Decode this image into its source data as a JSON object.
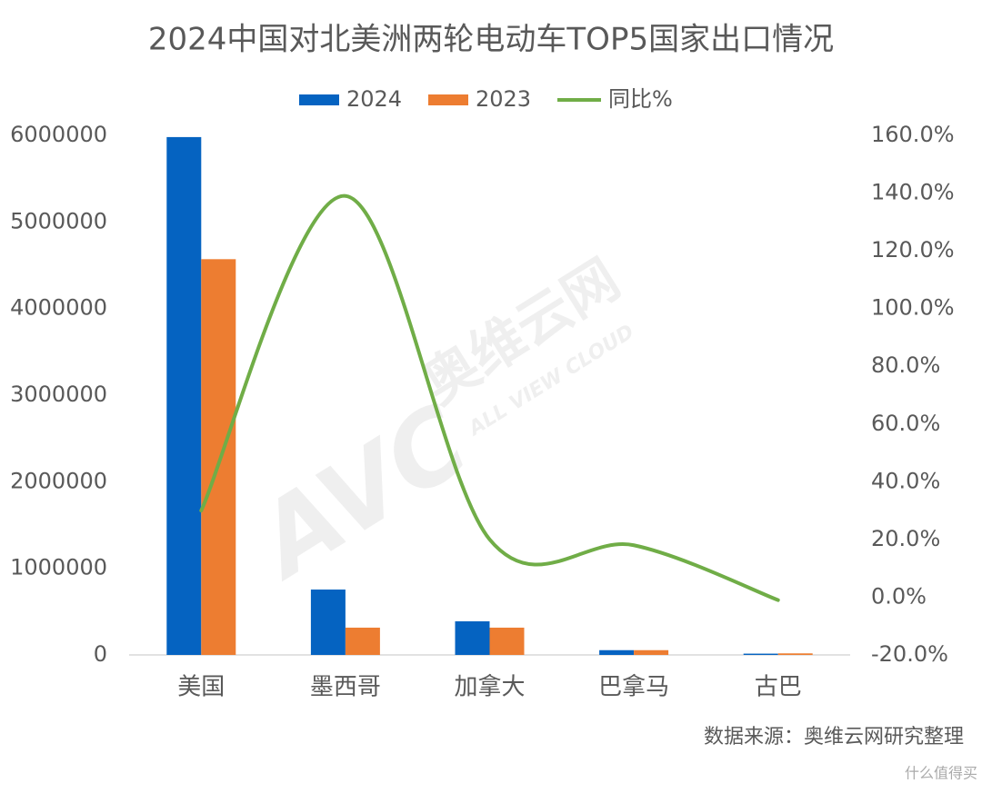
{
  "chart_data": {
    "type": "bar-line",
    "title": "2024中国对北美洲两轮电动车TOP5国家出口情况",
    "categories": [
      "美国",
      "墨西哥",
      "加拿大",
      "巴拿马",
      "古巴"
    ],
    "series": [
      {
        "name": "2024",
        "color": "#0563c1",
        "type": "bar",
        "values": [
          5980000,
          755000,
          388000,
          55000,
          15000
        ]
      },
      {
        "name": "2023",
        "color": "#ed7d31",
        "type": "bar",
        "values": [
          4570000,
          315000,
          315000,
          55000,
          18000
        ]
      },
      {
        "name": "同比%",
        "color": "#70ad47",
        "type": "line",
        "axis": "y2",
        "values": [
          30,
          139,
          20,
          18,
          -1
        ]
      }
    ],
    "ylim": [
      0,
      6000000
    ],
    "yticks": [
      0,
      1000000,
      2000000,
      3000000,
      4000000,
      5000000,
      6000000
    ],
    "y2lim": [
      -20,
      160
    ],
    "y2ticks": [
      {
        "value": -20,
        "label": "-20.0%"
      },
      {
        "value": 0,
        "label": "0.0%"
      },
      {
        "value": 20,
        "label": "20.0%"
      },
      {
        "value": 40,
        "label": "40.0%"
      },
      {
        "value": 60,
        "label": "60.0%"
      },
      {
        "value": 80,
        "label": "80.0%"
      },
      {
        "value": 100,
        "label": "100.0%"
      },
      {
        "value": 120,
        "label": "120.0%"
      },
      {
        "value": 140,
        "label": "140.0%"
      },
      {
        "value": 160,
        "label": "160.0%"
      }
    ],
    "grid": false,
    "legend": "top",
    "source": "数据来源：奥维云网研究整理",
    "watermark": [
      "AVC",
      "奥维云网",
      "ALL VIEW CLOUD"
    ],
    "corner_mark": "什么值得买"
  }
}
